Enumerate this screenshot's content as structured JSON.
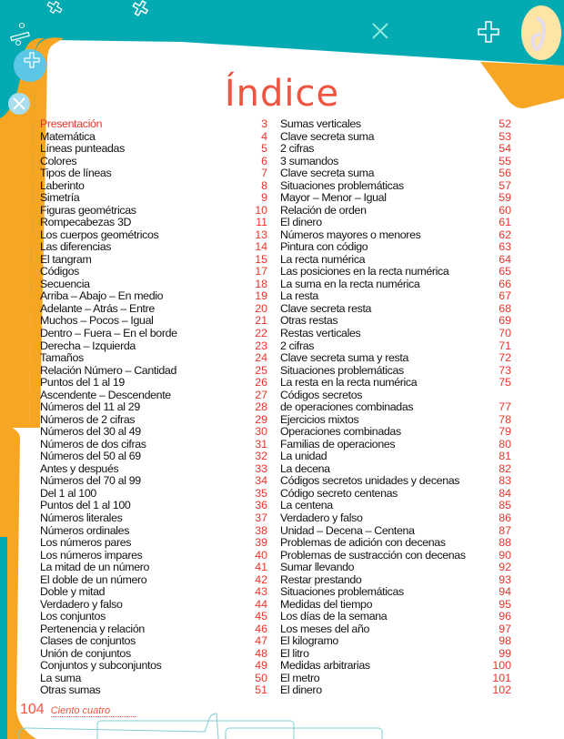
{
  "title": "Índice",
  "colors": {
    "accent": "#ee5440",
    "teal": "#03aab2",
    "orange": "#f6a623"
  },
  "left_column": [
    {
      "label": "Presentación",
      "page": "3",
      "highlight": true
    },
    {
      "label": "Matemática",
      "page": "4"
    },
    {
      "label": "Líneas punteadas",
      "page": "5"
    },
    {
      "label": "Colores",
      "page": "6"
    },
    {
      "label": "Tipos de líneas",
      "page": "7"
    },
    {
      "label": "Laberinto",
      "page": "8"
    },
    {
      "label": "Simetría",
      "page": "9"
    },
    {
      "label": "Figuras geométricas",
      "page": "10"
    },
    {
      "label": "Rompecabezas 3D",
      "page": "11"
    },
    {
      "label": "Los cuerpos geométricos",
      "page": "13"
    },
    {
      "label": "Las diferencias",
      "page": "14"
    },
    {
      "label": "El tangram",
      "page": "15"
    },
    {
      "label": "Códigos",
      "page": "17"
    },
    {
      "label": "Secuencia",
      "page": "18"
    },
    {
      "label": "Arriba – Abajo – En medio",
      "page": "19"
    },
    {
      "label": "Adelante – Atrás – Entre",
      "page": "20"
    },
    {
      "label": "Muchos – Pocos – Igual",
      "page": "21"
    },
    {
      "label": "Dentro – Fuera – En el borde",
      "page": "22"
    },
    {
      "label": "Derecha – Izquierda",
      "page": "23"
    },
    {
      "label": "Tamaños",
      "page": "24"
    },
    {
      "label": "Relación Número – Cantidad",
      "page": "25"
    },
    {
      "label": "Puntos del 1 al 19",
      "page": "26"
    },
    {
      "label": "Ascendente – Descendente",
      "page": "27"
    },
    {
      "label": "Números del 11 al 29",
      "page": "28"
    },
    {
      "label": "Números de 2 cifras",
      "page": "29"
    },
    {
      "label": "Números del 30 al 49",
      "page": "30"
    },
    {
      "label": "Números de dos cifras",
      "page": "31"
    },
    {
      "label": "Números del 50 al 69",
      "page": "32"
    },
    {
      "label": "Antes y después",
      "page": "33"
    },
    {
      "label": "Números del 70 al 99",
      "page": "34"
    },
    {
      "label": "Del 1 al 100",
      "page": "35"
    },
    {
      "label": "Puntos del 1 al 100",
      "page": "36"
    },
    {
      "label": "Números literales",
      "page": "37"
    },
    {
      "label": "Números ordinales",
      "page": "38"
    },
    {
      "label": "Los números pares",
      "page": "39"
    },
    {
      "label": "Los números impares",
      "page": "40"
    },
    {
      "label": "La mitad de un número",
      "page": "41"
    },
    {
      "label": "El doble de un número",
      "page": "42"
    },
    {
      "label": "Doble y mitad",
      "page": "43"
    },
    {
      "label": "Verdadero y falso",
      "page": "44"
    },
    {
      "label": "Los conjuntos",
      "page": "45"
    },
    {
      "label": "Pertenencia y relación",
      "page": "46"
    },
    {
      "label": "Clases de conjuntos",
      "page": "47"
    },
    {
      "label": "Unión de conjuntos",
      "page": "48"
    },
    {
      "label": "Conjuntos y subconjuntos",
      "page": "49"
    },
    {
      "label": "La suma",
      "page": "50"
    },
    {
      "label": "Otras sumas",
      "page": "51"
    }
  ],
  "right_column": [
    {
      "label": "Sumas verticales",
      "page": "52"
    },
    {
      "label": "Clave secreta suma",
      "page": "53"
    },
    {
      "label": "2 cifras",
      "page": "54"
    },
    {
      "label": "3 sumandos",
      "page": "55"
    },
    {
      "label": "Clave secreta suma",
      "page": "56"
    },
    {
      "label": "Situaciones problemáticas",
      "page": "57"
    },
    {
      "label": "Mayor – Menor – Igual",
      "page": "59"
    },
    {
      "label": "Relación de orden",
      "page": "60"
    },
    {
      "label": "El dinero",
      "page": "61"
    },
    {
      "label": "Números mayores o menores",
      "page": "62"
    },
    {
      "label": "Pintura con código",
      "page": "63"
    },
    {
      "label": "La recta numérica",
      "page": "64"
    },
    {
      "label": "Las posiciones en la recta numérica",
      "page": "65"
    },
    {
      "label": "La suma en la recta numérica",
      "page": "66"
    },
    {
      "label": "La resta",
      "page": "67"
    },
    {
      "label": "Clave secreta resta",
      "page": "68"
    },
    {
      "label": "Otras restas",
      "page": "69"
    },
    {
      "label": "Restas verticales",
      "page": "70"
    },
    {
      "label": "2 cifras",
      "page": "71"
    },
    {
      "label": "Clave secreta suma y resta",
      "page": "72"
    },
    {
      "label": "Situaciones problemáticas",
      "page": "73"
    },
    {
      "label": "La resta en la recta numérica",
      "page": "75"
    },
    {
      "label": "Códigos secretos\nde operaciones combinadas",
      "page": "77",
      "two_lines": true
    },
    {
      "label": "Ejercicios mixtos",
      "page": "78"
    },
    {
      "label": "Operaciones combinadas",
      "page": "79"
    },
    {
      "label": "Familias de operaciones",
      "page": "80"
    },
    {
      "label": "La unidad",
      "page": "81"
    },
    {
      "label": "La decena",
      "page": "82"
    },
    {
      "label": "Códigos secretos unidades y decenas",
      "page": "83"
    },
    {
      "label": "Código secreto centenas",
      "page": "84"
    },
    {
      "label": "La centena",
      "page": "85"
    },
    {
      "label": "Verdadero y falso",
      "page": "86"
    },
    {
      "label": "Unidad – Decena – Centena",
      "page": "87"
    },
    {
      "label": "Problemas de adición con decenas",
      "page": "88"
    },
    {
      "label": "Problemas de sustracción con decenas",
      "page": "90"
    },
    {
      "label": "Sumar llevando",
      "page": "92"
    },
    {
      "label": "Restar prestando",
      "page": "93"
    },
    {
      "label": "Situaciones problemáticas",
      "page": "94"
    },
    {
      "label": "Medidas del tiempo",
      "page": "95"
    },
    {
      "label": "Los días de la semana",
      "page": "96"
    },
    {
      "label": "Los meses del año",
      "page": "97"
    },
    {
      "label": "El kilogramo",
      "page": "98"
    },
    {
      "label": "El litro",
      "page": "99"
    },
    {
      "label": "Medidas arbitrarias",
      "page": "100"
    },
    {
      "label": "El metro",
      "page": "101"
    },
    {
      "label": "El dinero",
      "page": "102"
    }
  ],
  "footer": {
    "page_number": "104",
    "page_words": "Ciento cuatro"
  }
}
